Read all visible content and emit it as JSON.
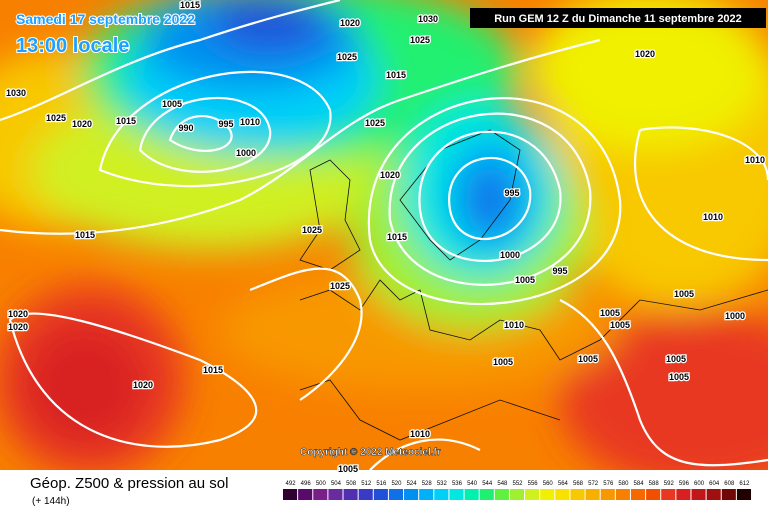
{
  "header": {
    "valid_date": "Samedi 17 septembre 2022",
    "local_time": "13:00 locale",
    "run": "Run GEM 12 Z du Dimanche 11 septembre 2022"
  },
  "map": {
    "isobar_labels": [
      "1015",
      "1020",
      "1030",
      "1025",
      "1025",
      "1015",
      "1030",
      "1005",
      "1025",
      "1020",
      "1015",
      "990",
      "995",
      "1010",
      "1000",
      "1025",
      "1020",
      "1020",
      "995",
      "1010",
      "1010",
      "1015",
      "1025",
      "1015",
      "1000",
      "995",
      "1005",
      "1025",
      "1005",
      "1000",
      "1005",
      "1005",
      "1020",
      "1020",
      "1010",
      "1005",
      "1005",
      "1005",
      "1005",
      "1015",
      "1020",
      "1010",
      "1005"
    ],
    "copyright": "Copyright © 2022 Meteociel.fr"
  },
  "footer": {
    "title": "Géop. Z500 & pression au sol",
    "lead_time": "(+ 144h)",
    "legend": [
      "492",
      "496",
      "500",
      "504",
      "508",
      "512",
      "516",
      "520",
      "524",
      "528",
      "532",
      "536",
      "540",
      "544",
      "548",
      "552",
      "556",
      "560",
      "564",
      "568",
      "572",
      "576",
      "580",
      "584",
      "588",
      "592",
      "596",
      "600",
      "604",
      "608",
      "612"
    ]
  }
}
